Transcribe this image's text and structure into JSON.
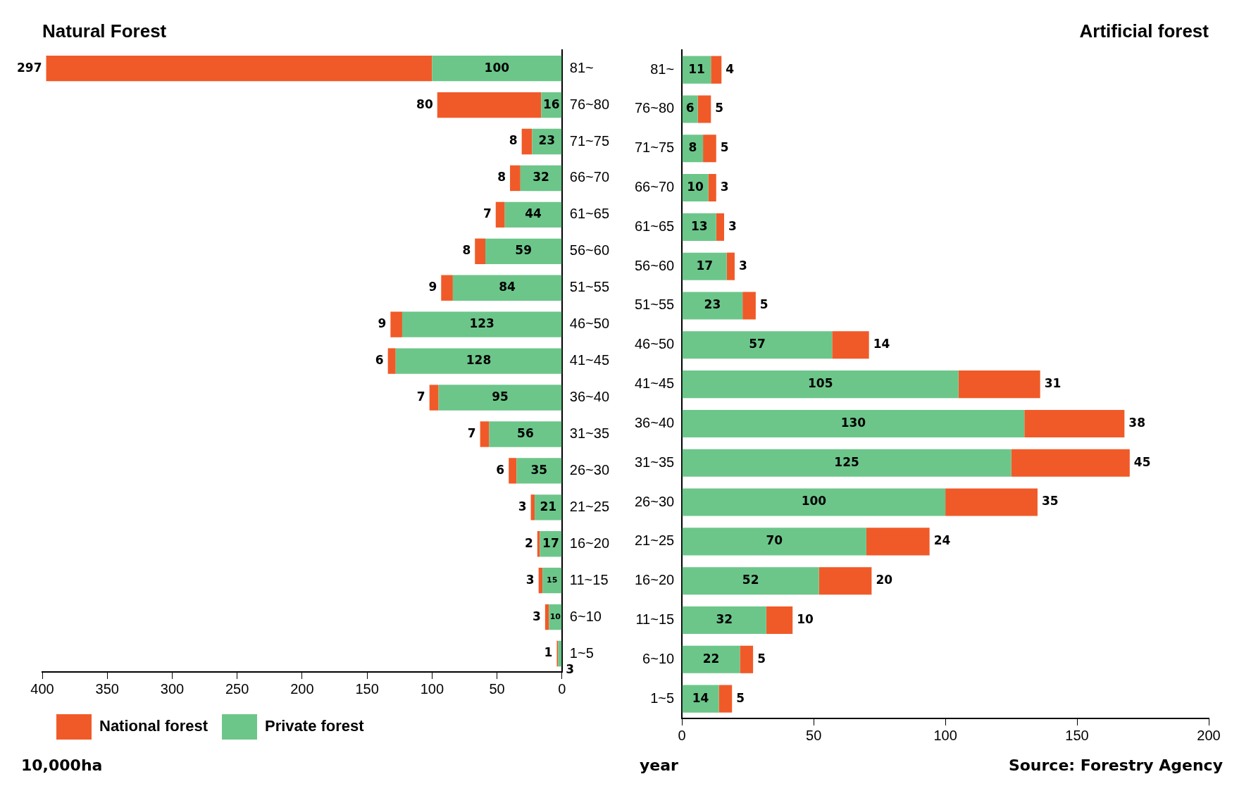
{
  "chart_data": [
    {
      "type": "bar",
      "orientation": "horizontal",
      "stacked": true,
      "title": "Natural Forest",
      "categories": [
        "81~",
        "76~80",
        "71~75",
        "66~70",
        "61~65",
        "56~60",
        "51~55",
        "46~50",
        "41~45",
        "36~40",
        "31~35",
        "26~30",
        "21~25",
        "16~20",
        "11~15",
        "6~10",
        "1~5"
      ],
      "series": [
        {
          "name": "Private forest",
          "color": "#6cc68a",
          "values": [
            100,
            16,
            23,
            32,
            44,
            59,
            84,
            123,
            128,
            95,
            56,
            35,
            21,
            17,
            15,
            10,
            3
          ]
        },
        {
          "name": "National forest",
          "color": "#f05a28",
          "values": [
            297,
            80,
            8,
            8,
            7,
            8,
            9,
            9,
            6,
            7,
            7,
            6,
            3,
            2,
            3,
            3,
            1
          ]
        }
      ],
      "xlim": [
        400,
        0
      ],
      "xticks": [
        400,
        350,
        300,
        250,
        200,
        150,
        100,
        50,
        0
      ],
      "grid": false,
      "legend": "bottom left",
      "data_labels": true,
      "annotations": [
        "10,000ha"
      ]
    },
    {
      "type": "bar",
      "orientation": "horizontal",
      "stacked": true,
      "title": "Artificial forest",
      "categories": [
        "81~",
        "76~80",
        "71~75",
        "66~70",
        "61~65",
        "56~60",
        "51~55",
        "46~50",
        "41~45",
        "36~40",
        "31~35",
        "26~30",
        "21~25",
        "16~20",
        "11~15",
        "6~10",
        "1~5"
      ],
      "series": [
        {
          "color": "#6cc68a",
          "values": [
            11,
            6,
            8,
            10,
            13,
            17,
            23,
            57,
            105,
            130,
            125,
            100,
            70,
            52,
            32,
            22,
            14
          ]
        },
        {
          "color": "#f05a28",
          "values": [
            4,
            5,
            5,
            3,
            3,
            3,
            5,
            14,
            31,
            38,
            45,
            35,
            24,
            20,
            10,
            5,
            5
          ]
        }
      ],
      "xlim": [
        0,
        200
      ],
      "xticks": [
        0,
        50,
        100,
        150,
        200
      ],
      "grid": false,
      "legend": false,
      "data_labels": true,
      "annotations": [
        "year",
        "Source: Forestry Agency"
      ]
    }
  ]
}
